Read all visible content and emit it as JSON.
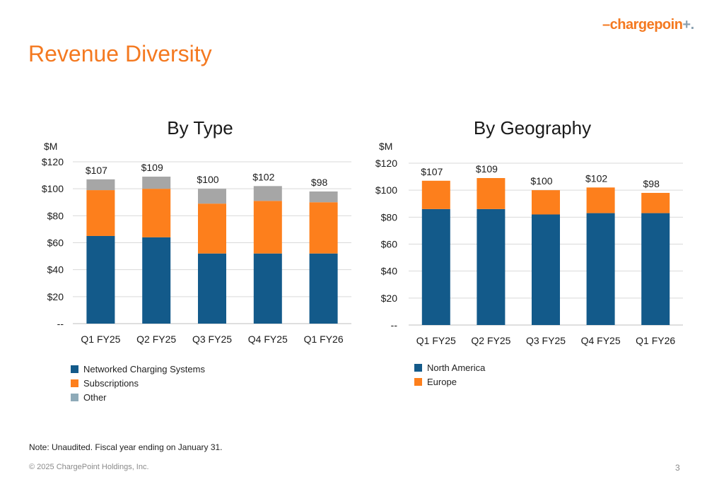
{
  "logo": {
    "main": "chargepoin",
    "suffix": "+."
  },
  "page_title": "Revenue Diversity",
  "colors": {
    "networked": "#135a8a",
    "subscriptions": "#fd7f1c",
    "other": "#a6a6a6",
    "north_america": "#135a8a",
    "europe": "#fd7f1c",
    "grid": "#d9d9d9",
    "title_orange": "#f47920"
  },
  "chart_data": [
    {
      "type": "bar",
      "stacked": true,
      "title": "By Type",
      "ylabel": "$M",
      "categories": [
        "Q1 FY25",
        "Q2 FY25",
        "Q3 FY25",
        "Q4 FY25",
        "Q1 FY26"
      ],
      "series": [
        {
          "name": "Networked Charging Systems",
          "values": [
            65,
            64,
            52,
            52,
            52
          ]
        },
        {
          "name": "Subscriptions",
          "values": [
            34,
            36,
            37,
            39,
            38
          ]
        },
        {
          "name": "Other",
          "values": [
            8,
            9,
            11,
            11,
            8
          ]
        }
      ],
      "totals": [
        "$107",
        "$109",
        "$100",
        "$102",
        "$98"
      ],
      "ylim": [
        0,
        120
      ],
      "yticks": [
        0,
        20,
        40,
        60,
        80,
        100,
        120
      ],
      "ytick_labels": [
        "--",
        "$20",
        "$40",
        "$60",
        "$80",
        "$100",
        "$120"
      ],
      "grid": true,
      "legend_position": "bottom-left"
    },
    {
      "type": "bar",
      "stacked": true,
      "title": "By Geography",
      "ylabel": "$M",
      "categories": [
        "Q1 FY25",
        "Q2 FY25",
        "Q3 FY25",
        "Q4 FY25",
        "Q1 FY26"
      ],
      "series": [
        {
          "name": "North America",
          "values": [
            86,
            86,
            82,
            83,
            83
          ]
        },
        {
          "name": "Europe",
          "values": [
            21,
            23,
            18,
            19,
            15
          ]
        }
      ],
      "totals": [
        "$107",
        "$109",
        "$100",
        "$102",
        "$98"
      ],
      "ylim": [
        0,
        120
      ],
      "yticks": [
        0,
        20,
        40,
        60,
        80,
        100,
        120
      ],
      "ytick_labels": [
        "--",
        "$20",
        "$40",
        "$60",
        "$80",
        "$100",
        "$120"
      ],
      "grid": true,
      "legend_position": "bottom-left"
    }
  ],
  "note": "Note: Unaudited. Fiscal year ending on January 31.",
  "copyright": "© 2025 ChargePoint Holdings, Inc.",
  "page_number": "3"
}
